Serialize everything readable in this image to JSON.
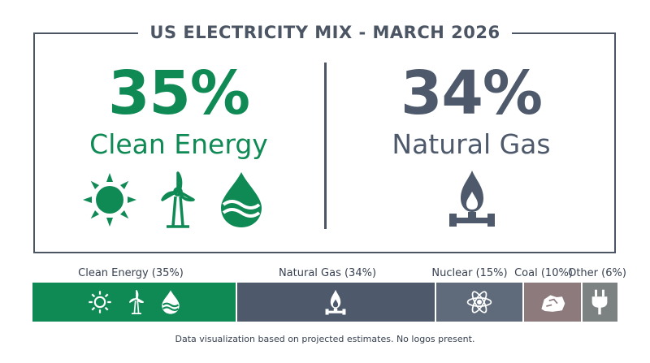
{
  "title": "US ELECTRICITY MIX - MARCH 2026",
  "hero_left": {
    "value": "35%",
    "label": "Clean Energy",
    "icons": [
      "sun-icon",
      "wind-turbine-icon",
      "water-drop-icon"
    ]
  },
  "hero_right": {
    "value": "34%",
    "label": "Natural Gas",
    "icons": [
      "gas-flame-icon"
    ]
  },
  "colors": {
    "green": "#0f8a55",
    "slate": "#4e5a6b",
    "nuclear": "#5f6b7b",
    "coal": "#8c7a7c",
    "other": "#7c8282"
  },
  "chart_data": {
    "type": "bar",
    "orientation": "horizontal-stacked",
    "categories": [
      "Clean Energy (35%)",
      "Natural Gas (34%)",
      "Nuclear (15%)",
      "Coal (10%)",
      "Other (6%)"
    ],
    "values": [
      35,
      34,
      15,
      10,
      6
    ],
    "colors": [
      "#0f8a55",
      "#4e5a6b",
      "#5f6b7b",
      "#8c7a7c",
      "#7c8282"
    ],
    "icons": [
      [
        "sun-icon",
        "wind-turbine-icon",
        "water-drop-icon"
      ],
      [
        "gas-flame-icon"
      ],
      [
        "atom-icon"
      ],
      [
        "coal-icon"
      ],
      [
        "plug-icon"
      ]
    ]
  },
  "footnote": "Data visualization based on projected estimates. No logos present."
}
